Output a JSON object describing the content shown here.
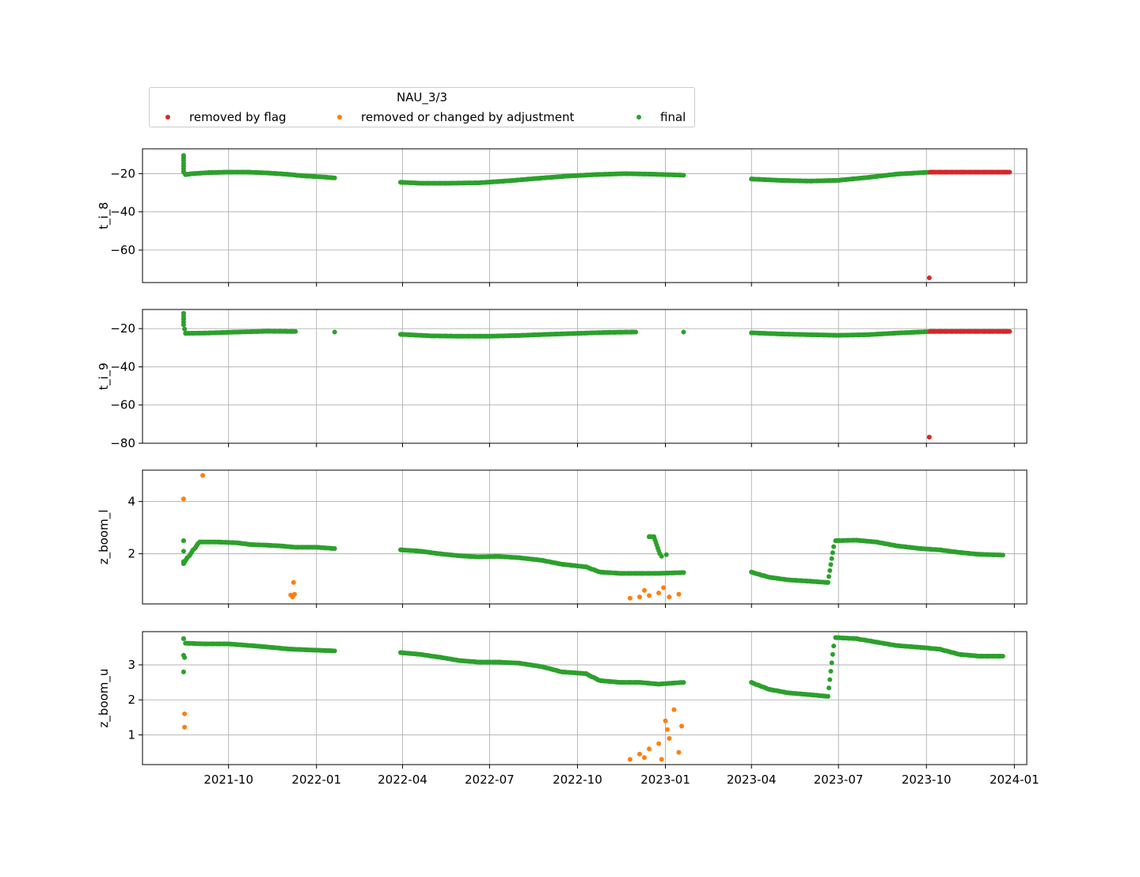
{
  "legend": {
    "title": "NAU_3/3",
    "entries": [
      {
        "label": "removed by flag",
        "color": "#d62728"
      },
      {
        "label": "removed or changed by adjustment",
        "color": "#ff7f0e"
      },
      {
        "label": "final",
        "color": "#2ca02c"
      }
    ]
  },
  "colors": {
    "flag": "#d62728",
    "adjust": "#ff7f0e",
    "final": "#2ca02c",
    "grid": "#b0b0b0"
  },
  "chart_data": {
    "type": "scatter",
    "legend_placement": "top-left, above first panel",
    "grid": true,
    "x_ticks": [
      "2021-10",
      "2022-01",
      "2022-04",
      "2022-07",
      "2022-10",
      "2023-01",
      "2023-04",
      "2023-07",
      "2023-10",
      "2024-01"
    ],
    "xlim": [
      "2021-07-03",
      "2024-01-14"
    ],
    "panels": [
      {
        "ylabel": "t_i_8",
        "ylim": [
          -77,
          -7
        ],
        "yticks": [
          -20,
          -40,
          -60
        ],
        "series": {
          "final": [
            {
              "x": "2021-08-15",
              "y": -10.5
            },
            {
              "x": "2021-08-15",
              "y": -13
            },
            {
              "x": "2021-08-15",
              "y": -16
            },
            {
              "x": "2021-08-15",
              "y": -19
            },
            {
              "x": "2021-08-17",
              "y": -20.5
            },
            {
              "x": "2021-08-25",
              "y": -20
            },
            {
              "x": "2021-09-10",
              "y": -19.5
            },
            {
              "x": "2021-10-01",
              "y": -19.2
            },
            {
              "x": "2021-10-20",
              "y": -19.2
            },
            {
              "x": "2021-11-10",
              "y": -19.6
            },
            {
              "x": "2021-12-01",
              "y": -20.3
            },
            {
              "x": "2021-12-20",
              "y": -21.2
            },
            {
              "x": "2022-01-10",
              "y": -21.8
            },
            {
              "x": "2022-01-20",
              "y": -22.2
            },
            {
              "x": "2022-03-30",
              "y": -24.5
            },
            {
              "x": "2022-04-20",
              "y": -25
            },
            {
              "x": "2022-05-20",
              "y": -25
            },
            {
              "x": "2022-06-20",
              "y": -24.8
            },
            {
              "x": "2022-07-20",
              "y": -23.8
            },
            {
              "x": "2022-08-20",
              "y": -22.5
            },
            {
              "x": "2022-09-20",
              "y": -21.3
            },
            {
              "x": "2022-10-20",
              "y": -20.5
            },
            {
              "x": "2022-11-20",
              "y": -20
            },
            {
              "x": "2022-12-20",
              "y": -20.3
            },
            {
              "x": "2023-01-20",
              "y": -20.8
            },
            {
              "x": "2023-04-01",
              "y": -22.8
            },
            {
              "x": "2023-05-01",
              "y": -23.5
            },
            {
              "x": "2023-06-01",
              "y": -23.9
            },
            {
              "x": "2023-07-01",
              "y": -23.5
            },
            {
              "x": "2023-08-01",
              "y": -22
            },
            {
              "x": "2023-09-01",
              "y": -20.2
            },
            {
              "x": "2023-10-03",
              "y": -19.3
            }
          ],
          "flag": [
            {
              "x": "2023-10-05",
              "y": -19.2
            },
            {
              "x": "2023-10-20",
              "y": -19.2
            },
            {
              "x": "2023-11-05",
              "y": -19.2
            },
            {
              "x": "2023-11-20",
              "y": -19.2
            },
            {
              "x": "2023-12-05",
              "y": -19.2
            },
            {
              "x": "2023-12-20",
              "y": -19.2
            },
            {
              "x": "2023-12-27",
              "y": -19.2
            },
            {
              "x": "2023-10-04",
              "y": -74.5
            }
          ],
          "adjust": []
        }
      },
      {
        "ylabel": "t_i_9",
        "ylim": [
          -80,
          -10
        ],
        "yticks": [
          -20,
          -40,
          -60,
          -80
        ],
        "series": {
          "final": [
            {
              "x": "2021-08-15",
              "y": -12
            },
            {
              "x": "2021-08-15",
              "y": -15
            },
            {
              "x": "2021-08-15",
              "y": -18
            },
            {
              "x": "2021-08-17",
              "y": -22.5
            },
            {
              "x": "2021-09-10",
              "y": -22.3
            },
            {
              "x": "2021-10-10",
              "y": -21.8
            },
            {
              "x": "2021-11-10",
              "y": -21.4
            },
            {
              "x": "2021-12-10",
              "y": -21.5
            },
            {
              "x": "2022-01-20",
              "y": -21.8
            },
            {
              "x": "2022-03-30",
              "y": -23
            },
            {
              "x": "2022-05-01",
              "y": -23.8
            },
            {
              "x": "2022-06-01",
              "y": -24
            },
            {
              "x": "2022-07-01",
              "y": -24
            },
            {
              "x": "2022-08-01",
              "y": -23.6
            },
            {
              "x": "2022-09-01",
              "y": -23
            },
            {
              "x": "2022-10-01",
              "y": -22.5
            },
            {
              "x": "2022-11-01",
              "y": -22
            },
            {
              "x": "2022-12-01",
              "y": -21.8
            },
            {
              "x": "2023-01-20",
              "y": -21.8
            },
            {
              "x": "2023-04-01",
              "y": -22.2
            },
            {
              "x": "2023-05-01",
              "y": -22.8
            },
            {
              "x": "2023-06-01",
              "y": -23.2
            },
            {
              "x": "2023-07-01",
              "y": -23.5
            },
            {
              "x": "2023-08-01",
              "y": -23.2
            },
            {
              "x": "2023-09-01",
              "y": -22.3
            },
            {
              "x": "2023-10-03",
              "y": -21.6
            }
          ],
          "flag": [
            {
              "x": "2023-10-05",
              "y": -21.5
            },
            {
              "x": "2023-10-20",
              "y": -21.5
            },
            {
              "x": "2023-11-05",
              "y": -21.5
            },
            {
              "x": "2023-11-20",
              "y": -21.5
            },
            {
              "x": "2023-12-05",
              "y": -21.5
            },
            {
              "x": "2023-12-20",
              "y": -21.5
            },
            {
              "x": "2023-12-27",
              "y": -21.5
            },
            {
              "x": "2023-10-04",
              "y": -76.8
            }
          ],
          "adjust": []
        }
      },
      {
        "ylabel": "z_boom_l",
        "ylim": [
          0.08,
          5.2
        ],
        "yticks": [
          2,
          4
        ],
        "series": {
          "final": [
            {
              "x": "2021-08-15",
              "y": 2.5
            },
            {
              "x": "2021-08-15",
              "y": 1.7
            },
            {
              "x": "2021-08-15",
              "y": 1.62
            },
            {
              "x": "2021-09-01",
              "y": 2.45
            },
            {
              "x": "2021-09-20",
              "y": 2.45
            },
            {
              "x": "2021-10-10",
              "y": 2.42
            },
            {
              "x": "2021-10-25",
              "y": 2.35
            },
            {
              "x": "2021-11-10",
              "y": 2.33
            },
            {
              "x": "2021-11-25",
              "y": 2.3
            },
            {
              "x": "2021-12-10",
              "y": 2.25
            },
            {
              "x": "2022-01-01",
              "y": 2.25
            },
            {
              "x": "2022-01-20",
              "y": 2.2
            },
            {
              "x": "2022-03-30",
              "y": 2.15
            },
            {
              "x": "2022-04-20",
              "y": 2.1
            },
            {
              "x": "2022-05-10",
              "y": 2.0
            },
            {
              "x": "2022-06-01",
              "y": 1.92
            },
            {
              "x": "2022-06-20",
              "y": 1.88
            },
            {
              "x": "2022-07-10",
              "y": 1.9
            },
            {
              "x": "2022-08-01",
              "y": 1.85
            },
            {
              "x": "2022-08-25",
              "y": 1.75
            },
            {
              "x": "2022-09-15",
              "y": 1.6
            },
            {
              "x": "2022-10-10",
              "y": 1.5
            },
            {
              "x": "2022-10-25",
              "y": 1.3
            },
            {
              "x": "2022-11-15",
              "y": 1.25
            },
            {
              "x": "2022-12-05",
              "y": 1.25
            },
            {
              "x": "2022-12-25",
              "y": 1.25
            },
            {
              "x": "2023-01-20",
              "y": 1.28
            },
            {
              "x": "2022-12-15",
              "y": 2.65
            },
            {
              "x": "2022-12-20",
              "y": 2.65
            },
            {
              "x": "2022-12-28",
              "y": 1.9
            },
            {
              "x": "2023-04-01",
              "y": 1.3
            },
            {
              "x": "2023-04-20",
              "y": 1.1
            },
            {
              "x": "2023-05-10",
              "y": 1.0
            },
            {
              "x": "2023-06-01",
              "y": 0.95
            },
            {
              "x": "2023-06-20",
              "y": 0.9
            },
            {
              "x": "2023-06-28",
              "y": 2.5
            },
            {
              "x": "2023-07-20",
              "y": 2.52
            },
            {
              "x": "2023-08-10",
              "y": 2.45
            },
            {
              "x": "2023-09-01",
              "y": 2.3
            },
            {
              "x": "2023-09-25",
              "y": 2.2
            },
            {
              "x": "2023-10-15",
              "y": 2.15
            },
            {
              "x": "2023-11-05",
              "y": 2.05
            },
            {
              "x": "2023-11-25",
              "y": 1.98
            },
            {
              "x": "2023-12-20",
              "y": 1.95
            }
          ],
          "adjust": [
            {
              "x": "2021-08-15",
              "y": 4.1
            },
            {
              "x": "2021-09-04",
              "y": 5.0
            },
            {
              "x": "2021-12-05",
              "y": 0.42
            },
            {
              "x": "2021-12-07",
              "y": 0.35
            },
            {
              "x": "2021-12-09",
              "y": 0.45
            },
            {
              "x": "2021-12-08",
              "y": 0.9
            },
            {
              "x": "2022-11-25",
              "y": 0.3
            },
            {
              "x": "2022-12-05",
              "y": 0.35
            },
            {
              "x": "2022-12-15",
              "y": 0.4
            },
            {
              "x": "2022-12-25",
              "y": 0.5
            },
            {
              "x": "2023-01-05",
              "y": 0.35
            },
            {
              "x": "2023-01-15",
              "y": 0.45
            },
            {
              "x": "2022-12-10",
              "y": 0.6
            },
            {
              "x": "2022-12-30",
              "y": 0.7
            }
          ],
          "flag": []
        }
      },
      {
        "ylabel": "z_boom_u",
        "ylim": [
          0.15,
          3.95
        ],
        "yticks": [
          1,
          2,
          3
        ],
        "series": {
          "final": [
            {
              "x": "2021-08-15",
              "y": 3.75
            },
            {
              "x": "2021-08-15",
              "y": 2.8
            },
            {
              "x": "2021-08-17",
              "y": 3.62
            },
            {
              "x": "2021-09-05",
              "y": 3.6
            },
            {
              "x": "2021-10-01",
              "y": 3.6
            },
            {
              "x": "2021-10-25",
              "y": 3.55
            },
            {
              "x": "2021-11-15",
              "y": 3.5
            },
            {
              "x": "2021-12-05",
              "y": 3.45
            },
            {
              "x": "2022-01-01",
              "y": 3.42
            },
            {
              "x": "2022-01-20",
              "y": 3.4
            },
            {
              "x": "2022-03-30",
              "y": 3.35
            },
            {
              "x": "2022-04-20",
              "y": 3.3
            },
            {
              "x": "2022-05-10",
              "y": 3.22
            },
            {
              "x": "2022-06-01",
              "y": 3.12
            },
            {
              "x": "2022-06-20",
              "y": 3.08
            },
            {
              "x": "2022-07-10",
              "y": 3.08
            },
            {
              "x": "2022-08-01",
              "y": 3.05
            },
            {
              "x": "2022-08-25",
              "y": 2.95
            },
            {
              "x": "2022-09-15",
              "y": 2.8
            },
            {
              "x": "2022-10-10",
              "y": 2.75
            },
            {
              "x": "2022-10-25",
              "y": 2.55
            },
            {
              "x": "2022-11-15",
              "y": 2.5
            },
            {
              "x": "2022-12-05",
              "y": 2.5
            },
            {
              "x": "2022-12-25",
              "y": 2.45
            },
            {
              "x": "2023-01-20",
              "y": 2.5
            },
            {
              "x": "2023-04-01",
              "y": 2.5
            },
            {
              "x": "2023-04-20",
              "y": 2.3
            },
            {
              "x": "2023-05-10",
              "y": 2.2
            },
            {
              "x": "2023-06-01",
              "y": 2.15
            },
            {
              "x": "2023-06-20",
              "y": 2.1
            },
            {
              "x": "2023-06-28",
              "y": 3.78
            },
            {
              "x": "2023-07-20",
              "y": 3.75
            },
            {
              "x": "2023-08-10",
              "y": 3.65
            },
            {
              "x": "2023-09-01",
              "y": 3.55
            },
            {
              "x": "2023-09-25",
              "y": 3.5
            },
            {
              "x": "2023-10-15",
              "y": 3.45
            },
            {
              "x": "2023-11-05",
              "y": 3.3
            },
            {
              "x": "2023-11-25",
              "y": 3.25
            },
            {
              "x": "2023-12-20",
              "y": 3.25
            }
          ],
          "adjust": [
            {
              "x": "2021-08-16",
              "y": 1.6
            },
            {
              "x": "2021-08-16",
              "y": 1.22
            },
            {
              "x": "2022-11-25",
              "y": 0.3
            },
            {
              "x": "2022-12-05",
              "y": 0.45
            },
            {
              "x": "2022-12-15",
              "y": 0.6
            },
            {
              "x": "2022-12-25",
              "y": 0.75
            },
            {
              "x": "2023-01-05",
              "y": 0.9
            },
            {
              "x": "2023-01-15",
              "y": 0.5
            },
            {
              "x": "2023-01-01",
              "y": 1.4
            },
            {
              "x": "2023-01-03",
              "y": 1.15
            },
            {
              "x": "2023-01-10",
              "y": 1.72
            },
            {
              "x": "2023-01-18",
              "y": 1.25
            },
            {
              "x": "2022-12-10",
              "y": 0.35
            },
            {
              "x": "2022-12-28",
              "y": 0.3
            }
          ],
          "flag": []
        }
      }
    ]
  }
}
